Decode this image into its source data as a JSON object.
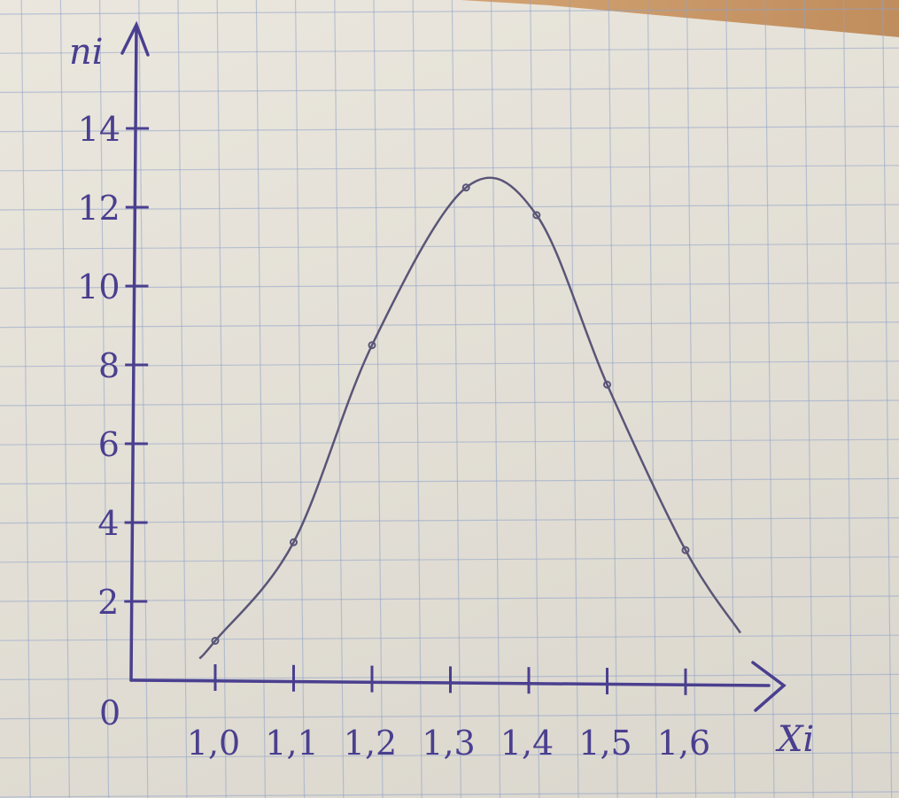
{
  "chart_data": {
    "type": "line",
    "title": "",
    "xlabel": "Xi",
    "ylabel": "ni",
    "origin_label": "0",
    "x_tick_labels": [
      "1,0",
      "1,1",
      "1,2",
      "1,3",
      "1,4",
      "1,5",
      "1,6"
    ],
    "x_ticks": [
      1.0,
      1.1,
      1.2,
      1.3,
      1.4,
      1.5,
      1.6
    ],
    "y_tick_labels": [
      "2",
      "4",
      "6",
      "8",
      "10",
      "12",
      "14"
    ],
    "y_ticks": [
      2,
      4,
      6,
      8,
      10,
      12,
      14
    ],
    "xlim": [
      0.9,
      1.7
    ],
    "ylim": [
      0,
      15
    ],
    "series": [
      {
        "points": [
          {
            "x": 1.0,
            "y": 1
          },
          {
            "x": 1.1,
            "y": 3.5
          },
          {
            "x": 1.2,
            "y": 8.5
          },
          {
            "x": 1.32,
            "y": 12.5
          },
          {
            "x": 1.41,
            "y": 11.8
          },
          {
            "x": 1.5,
            "y": 7.5
          },
          {
            "x": 1.6,
            "y": 3.3
          }
        ]
      }
    ],
    "curve_extent": {
      "x_start": 0.98,
      "x_end": 1.67
    },
    "grid": true,
    "colors": {
      "ink": "#4a3f8f",
      "curve": "#5a5577",
      "grid": "#8fa3c9",
      "paper": "#e8e4da"
    }
  }
}
